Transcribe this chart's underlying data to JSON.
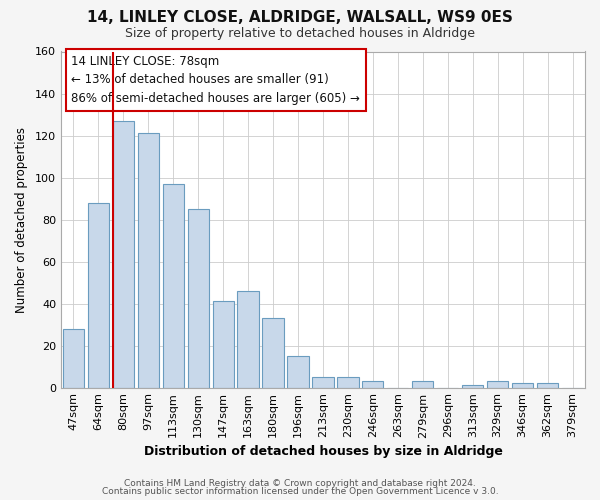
{
  "title": "14, LINLEY CLOSE, ALDRIDGE, WALSALL, WS9 0ES",
  "subtitle": "Size of property relative to detached houses in Aldridge",
  "xlabel": "Distribution of detached houses by size in Aldridge",
  "ylabel": "Number of detached properties",
  "bar_labels": [
    "47sqm",
    "64sqm",
    "80sqm",
    "97sqm",
    "113sqm",
    "130sqm",
    "147sqm",
    "163sqm",
    "180sqm",
    "196sqm",
    "213sqm",
    "230sqm",
    "246sqm",
    "263sqm",
    "279sqm",
    "296sqm",
    "313sqm",
    "329sqm",
    "346sqm",
    "362sqm",
    "379sqm"
  ],
  "bar_heights": [
    28,
    88,
    127,
    121,
    97,
    85,
    41,
    46,
    33,
    15,
    5,
    5,
    3,
    0,
    3,
    0,
    1,
    3,
    2,
    2,
    0
  ],
  "bar_color": "#c8d8ea",
  "bar_edge_color": "#6a9cbf",
  "vline_color": "#cc0000",
  "vline_index": 2,
  "ylim": [
    0,
    160
  ],
  "yticks": [
    0,
    20,
    40,
    60,
    80,
    100,
    120,
    140,
    160
  ],
  "annotation_title": "14 LINLEY CLOSE: 78sqm",
  "annotation_line1": "← 13% of detached houses are smaller (91)",
  "annotation_line2": "86% of semi-detached houses are larger (605) →",
  "footer1": "Contains HM Land Registry data © Crown copyright and database right 2024.",
  "footer2": "Contains public sector information licensed under the Open Government Licence v 3.0.",
  "fig_bg_color": "#f5f5f5",
  "plot_bg_color": "#ffffff",
  "grid_color": "#cccccc",
  "title_fontsize": 11,
  "subtitle_fontsize": 9,
  "xlabel_fontsize": 9,
  "ylabel_fontsize": 8.5,
  "tick_fontsize": 8,
  "footer_fontsize": 6.5,
  "ann_fontsize": 8.5
}
